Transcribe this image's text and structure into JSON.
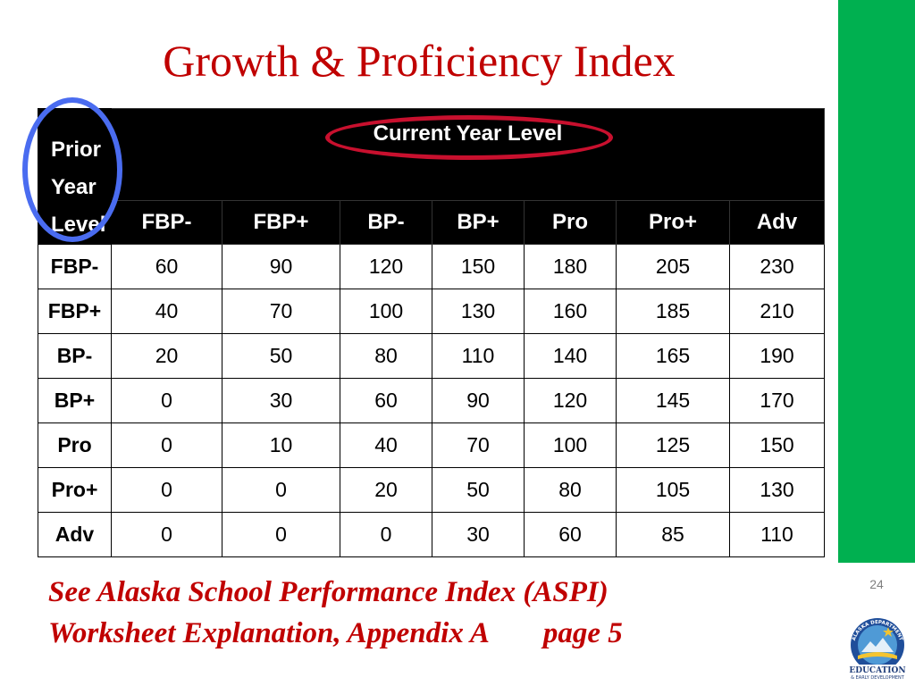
{
  "slide": {
    "title": "Growth & Proficiency Index",
    "page_number": "24"
  },
  "table": {
    "corner_label": [
      "Prior",
      "Year",
      "Level"
    ],
    "group_header": "Current Year Level",
    "columns": [
      "FBP-",
      "FBP+",
      "BP-",
      "BP+",
      "Pro",
      "Pro+",
      "Adv"
    ],
    "rows": [
      {
        "label": "FBP-",
        "values": [
          "60",
          "90",
          "120",
          "150",
          "180",
          "205",
          "230"
        ]
      },
      {
        "label": "FBP+",
        "values": [
          "40",
          "70",
          "100",
          "130",
          "160",
          "185",
          "210"
        ]
      },
      {
        "label": "BP-",
        "values": [
          "20",
          "50",
          "80",
          "110",
          "140",
          "165",
          "190"
        ]
      },
      {
        "label": "BP+",
        "values": [
          "0",
          "30",
          "60",
          "90",
          "120",
          "145",
          "170"
        ]
      },
      {
        "label": "Pro",
        "values": [
          "0",
          "10",
          "40",
          "70",
          "100",
          "125",
          "150"
        ]
      },
      {
        "label": "Pro+",
        "values": [
          "0",
          "0",
          "20",
          "50",
          "80",
          "105",
          "130"
        ]
      },
      {
        "label": "Adv",
        "values": [
          "0",
          "0",
          "0",
          "30",
          "60",
          "85",
          "110"
        ]
      }
    ]
  },
  "footnote": {
    "line1": "See Alaska School Performance Index (ASPI)",
    "line2": "Worksheet Explanation, Appendix A",
    "line2_page": "page 5"
  },
  "logo": {
    "arc_text": "ALASKA DEPARTMENT",
    "word1": "EDUCATION",
    "word2": "& EARLY DEVELOPMENT"
  },
  "colors": {
    "title_red": "#c00000",
    "sidebar_green": "#00b050",
    "highlight_blue": "#4a6cf0",
    "highlight_red": "#c8102e",
    "header_black": "#000000"
  }
}
